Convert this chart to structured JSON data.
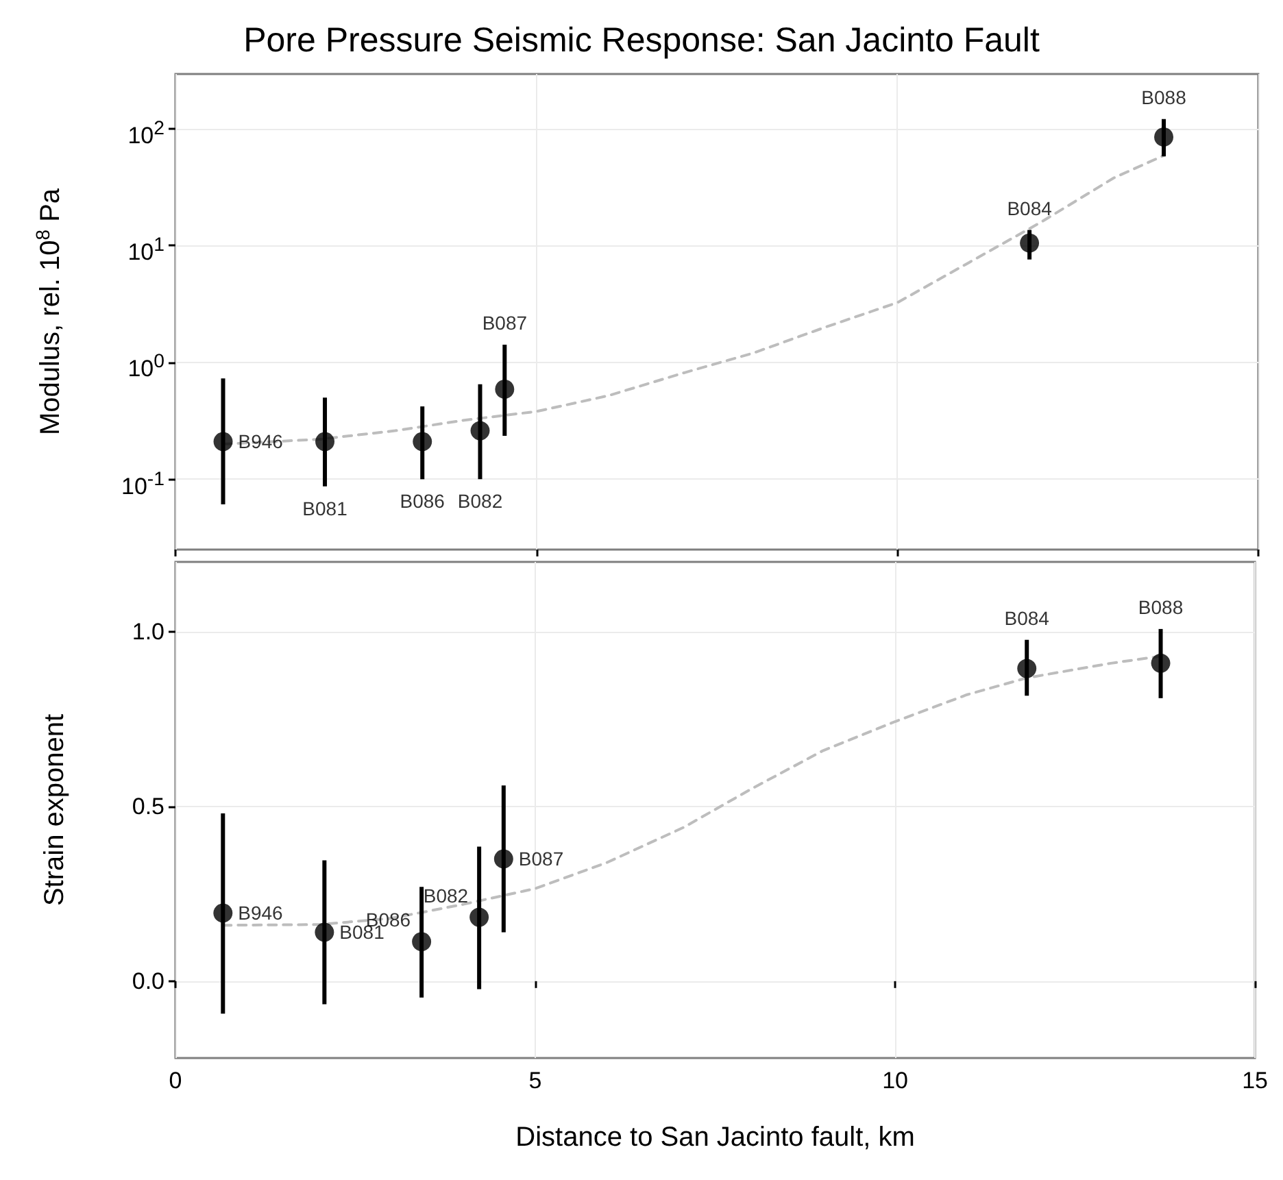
{
  "chart_data": [
    {
      "type": "scatter",
      "title": "Pore Pressure Seismic Response: San Jacinto Fault",
      "ylabel": "Modulus, rel. 10$^{8}$ Pa",
      "xlim": [
        0,
        15
      ],
      "xticks": [
        0,
        5,
        10,
        15
      ],
      "ylim": [
        0.025,
        294
      ],
      "yticks": [
        {
          "value": 0.1,
          "label": "10$^{-1}$"
        },
        {
          "value": 1,
          "label": "10$^{0}$"
        },
        {
          "value": 10,
          "label": "10$^{1}$"
        },
        {
          "value": 100,
          "label": "10$^{2}$"
        }
      ],
      "log": "y",
      "grid": true,
      "tick_labels": "y",
      "series": [
        {
          "type": "scatter",
          "color": "#000000",
          "marker": "circle",
          "x": [
            0.66,
            2.07,
            3.42,
            4.22,
            4.56,
            11.83,
            13.69
          ],
          "values": [
            0.21,
            0.21,
            0.21,
            0.26,
            0.59,
            10.5,
            85
          ],
          "errors": [
            [
              0.061,
              0.73
            ],
            [
              0.087,
              0.5
            ],
            [
              0.1,
              0.42
            ],
            [
              0.1,
              0.65
            ],
            [
              0.235,
              1.42
            ],
            [
              7.6,
              13.6
            ],
            [
              58,
              121
            ]
          ],
          "value_labels": [
            "B946",
            "B081",
            "B086",
            "B082",
            "B087",
            "B084",
            "B088"
          ]
        },
        {
          "type": "line",
          "color": "#bdbdbd",
          "marker": "none",
          "line_style": "dashed",
          "x": [
            0.66,
            2,
            3.04,
            4,
            5,
            6,
            7.06,
            8,
            9,
            10,
            11,
            12,
            13,
            13.69
          ],
          "values": [
            0.2,
            0.22,
            0.26,
            0.32,
            0.38,
            0.52,
            0.82,
            1.2,
            2.0,
            3.25,
            7.2,
            16,
            38,
            59
          ]
        }
      ]
    },
    {
      "type": "scatter",
      "xlabel": "Distance to San Jacinto fault, km",
      "ylabel": "Strain exponent",
      "xlim": [
        0,
        15
      ],
      "xticks": [
        0,
        5,
        10,
        15
      ],
      "ylim": [
        -0.22,
        1.2
      ],
      "yticks": [
        {
          "value": 0,
          "label": "0.0"
        },
        {
          "value": 0.5,
          "label": "0.5"
        },
        {
          "value": 1,
          "label": "1.0"
        }
      ],
      "grid": true,
      "series": [
        {
          "type": "scatter",
          "color": "#000000",
          "marker": "circle",
          "x": [
            0.66,
            2.07,
            3.42,
            4.22,
            4.56,
            11.83,
            13.69
          ],
          "values": [
            0.195,
            0.14,
            0.113,
            0.183,
            0.35,
            0.895,
            0.91
          ],
          "errors": [
            [
              -0.093,
              0.48
            ],
            [
              -0.066,
              0.346
            ],
            [
              -0.047,
              0.27
            ],
            [
              -0.023,
              0.385
            ],
            [
              0.14,
              0.56
            ],
            [
              0.817,
              0.977
            ],
            [
              0.81,
              1.008
            ]
          ],
          "value_labels": [
            "B946",
            "B081",
            "B086",
            "B082",
            "B087",
            "B084",
            "B088"
          ]
        },
        {
          "type": "line",
          "color": "#bdbdbd",
          "marker": "none",
          "line_style": "dashed",
          "x": [
            0.66,
            2,
            3,
            4,
            5,
            6,
            7.06,
            8,
            9,
            10,
            11,
            11.83,
            13,
            13.69
          ],
          "values": [
            0.16,
            0.162,
            0.18,
            0.22,
            0.265,
            0.34,
            0.44,
            0.55,
            0.66,
            0.743,
            0.82,
            0.868,
            0.91,
            0.93
          ]
        }
      ]
    }
  ]
}
